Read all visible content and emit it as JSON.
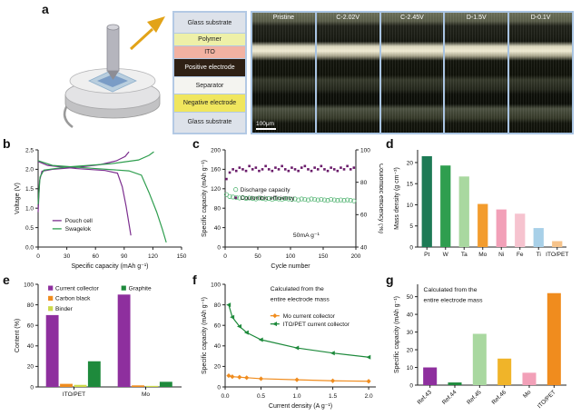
{
  "panels": {
    "a": "a",
    "b": "b",
    "c": "c",
    "d": "d",
    "e": "e",
    "f": "f",
    "g": "g"
  },
  "panel_a": {
    "stack_layers": [
      {
        "label": "Glass substrate",
        "bg": "#dde2ea",
        "fg": "#222"
      },
      {
        "label": "Polymer",
        "bg": "#eef0a8",
        "fg": "#222"
      },
      {
        "label": "ITO",
        "bg": "#f2b2a2",
        "fg": "#222"
      },
      {
        "label": "Positive electrode",
        "bg": "#2e2014",
        "fg": "#ffffff"
      },
      {
        "label": "Separator",
        "bg": "#f4f4f0",
        "fg": "#222"
      },
      {
        "label": "Negative electrode",
        "bg": "#f0e65e",
        "fg": "#222"
      },
      {
        "label": "Glass substrate",
        "bg": "#dde2ea",
        "fg": "#222"
      }
    ],
    "micrographs": [
      "Pristine",
      "C-2.02V",
      "C-2.45V",
      "D-1.5V",
      "D-0.1V"
    ],
    "scale_bar": "100μm"
  },
  "chart_data": [
    {
      "id": "b",
      "type": "line",
      "x": {
        "min": 0,
        "max": 150,
        "ticks": [
          0,
          30,
          60,
          90,
          120,
          150
        ],
        "dec": 0,
        "label": "Specific capacity (mAh g⁻¹)"
      },
      "y": {
        "min": 0,
        "max": 2.5,
        "ticks": [
          0,
          0.5,
          1,
          1.5,
          2,
          2.5
        ],
        "dec": 1,
        "label": "Voltage (V)"
      },
      "series": [
        {
          "name": "Pouch cell",
          "color": "#7b2d8e",
          "segments": [
            [
              [
                0,
                0.9
              ],
              [
                1.5,
                1.7
              ],
              [
                4,
                1.95
              ],
              [
                15,
                2.0
              ],
              [
                40,
                2.05
              ],
              [
                65,
                2.12
              ],
              [
                82,
                2.22
              ],
              [
                91,
                2.33
              ],
              [
                95,
                2.45
              ]
            ],
            [
              [
                0,
                2.2
              ],
              [
                10,
                2.1
              ],
              [
                40,
                2.02
              ],
              [
                70,
                1.97
              ],
              [
                83,
                1.9
              ],
              [
                88,
                1.55
              ],
              [
                92,
                1.05
              ],
              [
                95,
                0.6
              ],
              [
                97,
                0.3
              ]
            ]
          ]
        },
        {
          "name": "Swagelok",
          "color": "#2f9e4f",
          "segments": [
            [
              [
                0,
                1.1
              ],
              [
                2,
                1.8
              ],
              [
                6,
                1.98
              ],
              [
                30,
                2.06
              ],
              [
                75,
                2.14
              ],
              [
                105,
                2.24
              ],
              [
                116,
                2.36
              ],
              [
                121,
                2.45
              ]
            ],
            [
              [
                0,
                2.22
              ],
              [
                15,
                2.1
              ],
              [
                60,
                2.02
              ],
              [
                95,
                1.96
              ],
              [
                108,
                1.85
              ],
              [
                116,
                1.4
              ],
              [
                124,
                0.9
              ],
              [
                130,
                0.45
              ],
              [
                134,
                0.12
              ]
            ]
          ]
        }
      ],
      "legend": {
        "pos": [
          0.1,
          0.7
        ],
        "items": [
          {
            "label": "Pouch cell",
            "color": "#7b2d8e",
            "marker": "line"
          },
          {
            "label": "Swagelok",
            "color": "#2f9e4f",
            "marker": "line"
          }
        ]
      }
    },
    {
      "id": "c",
      "type": "scatter",
      "x": {
        "min": 0,
        "max": 200,
        "ticks": [
          0,
          50,
          100,
          150,
          200
        ],
        "dec": 0,
        "label": "Cycle number"
      },
      "y": {
        "min": 0,
        "max": 200,
        "ticks": [
          0,
          40,
          80,
          120,
          160,
          200
        ],
        "dec": 0,
        "label": "Specific capacity (mAh g⁻¹)"
      },
      "y2": {
        "min": 40,
        "max": 100,
        "ticks": [
          40,
          60,
          80,
          100
        ],
        "dec": 0,
        "label": "Coulombic efficiency (%)"
      },
      "series": [
        {
          "name": "Discharge capacity",
          "color": "#5cb87a",
          "marker": "circle-open",
          "points": [
            [
              2,
              108
            ],
            [
              7,
              104
            ],
            [
              12,
              103
            ],
            [
              17,
              102
            ],
            [
              22,
              101
            ],
            [
              27,
              102
            ],
            [
              32,
              100
            ],
            [
              37,
              101
            ],
            [
              42,
              100
            ],
            [
              47,
              99
            ],
            [
              52,
              101
            ],
            [
              57,
              100
            ],
            [
              62,
              99
            ],
            [
              67,
              100
            ],
            [
              72,
              98
            ],
            [
              77,
              100
            ],
            [
              82,
              99
            ],
            [
              87,
              98
            ],
            [
              92,
              100
            ],
            [
              97,
              99
            ],
            [
              102,
              98
            ],
            [
              107,
              99
            ],
            [
              112,
              97
            ],
            [
              117,
              99
            ],
            [
              122,
              98
            ],
            [
              127,
              97
            ],
            [
              132,
              99
            ],
            [
              137,
              98
            ],
            [
              142,
              97
            ],
            [
              147,
              98
            ],
            [
              152,
              97
            ],
            [
              157,
              96
            ],
            [
              162,
              98
            ],
            [
              167,
              97
            ],
            [
              172,
              96
            ],
            [
              177,
              97
            ],
            [
              182,
              96
            ],
            [
              187,
              97
            ],
            [
              192,
              96
            ],
            [
              197,
              95
            ]
          ]
        },
        {
          "name": "Coulombic efficiency",
          "color": "#6a1b6a",
          "marker": "dot",
          "axis": "y2",
          "points": [
            [
              2,
              82
            ],
            [
              7,
              86
            ],
            [
              12,
              88
            ],
            [
              17,
              87
            ],
            [
              22,
              89
            ],
            [
              27,
              88
            ],
            [
              32,
              87
            ],
            [
              37,
              90
            ],
            [
              42,
              88
            ],
            [
              47,
              89
            ],
            [
              52,
              87
            ],
            [
              57,
              88
            ],
            [
              62,
              90
            ],
            [
              67,
              88
            ],
            [
              72,
              87
            ],
            [
              77,
              89
            ],
            [
              82,
              88
            ],
            [
              87,
              90
            ],
            [
              92,
              88
            ],
            [
              97,
              87
            ],
            [
              102,
              89
            ],
            [
              107,
              88
            ],
            [
              112,
              87
            ],
            [
              117,
              89
            ],
            [
              122,
              90
            ],
            [
              127,
              88
            ],
            [
              132,
              87
            ],
            [
              137,
              89
            ],
            [
              142,
              88
            ],
            [
              147,
              90
            ],
            [
              152,
              88
            ],
            [
              157,
              87
            ],
            [
              162,
              89
            ],
            [
              167,
              88
            ],
            [
              172,
              87
            ],
            [
              177,
              89
            ],
            [
              182,
              88
            ],
            [
              187,
              90
            ],
            [
              192,
              88
            ],
            [
              197,
              89
            ]
          ]
        }
      ],
      "legend": {
        "pos": [
          0.06,
          0.38
        ],
        "items": [
          {
            "label": "Discharge capacity",
            "color": "#5cb87a",
            "marker": "circle-open"
          },
          {
            "label": "Coulombic efficiency",
            "color": "#6a1b6a",
            "marker": "dot"
          }
        ]
      },
      "annotations": [
        {
          "text": "50mA g⁻¹",
          "pos": [
            0.52,
            0.84
          ]
        }
      ]
    },
    {
      "id": "d",
      "type": "bar",
      "categories": [
        "Pt",
        "W",
        "Ta",
        "Mo",
        "Ni",
        "Fe",
        "Ti",
        "ITO/PET"
      ],
      "values": [
        21.5,
        19.3,
        16.7,
        10.2,
        8.9,
        7.9,
        4.5,
        1.4
      ],
      "colors": [
        "#1d7a55",
        "#2f9e4f",
        "#a9d8a0",
        "#f39c2d",
        "#f2a0b8",
        "#f6c3cf",
        "#a8d0e8",
        "#f6c38a"
      ],
      "y": {
        "min": 0,
        "max": 23,
        "ticks": [
          0,
          5,
          10,
          15,
          20
        ],
        "dec": 0,
        "label": "Mass density (g cm⁻³)"
      }
    },
    {
      "id": "e",
      "type": "groupbar",
      "categories": [
        "ITO/PET",
        "Mo"
      ],
      "series": [
        {
          "name": "Current collector",
          "color": "#8e2f9e",
          "values": [
            70,
            90
          ]
        },
        {
          "name": "Carbon black",
          "color": "#f08c1e",
          "values": [
            3,
            1.5
          ]
        },
        {
          "name": "Binder",
          "color": "#cdd94a",
          "values": [
            2,
            1
          ]
        },
        {
          "name": "Graphite",
          "color": "#1e8a3c",
          "values": [
            25,
            5
          ]
        }
      ],
      "y": {
        "min": 0,
        "max": 100,
        "ticks": [
          0,
          20,
          40,
          60,
          80,
          100
        ],
        "dec": 0,
        "label": "Content (%)"
      },
      "legend": {
        "items": [
          {
            "label": "Current collector",
            "color": "#8e2f9e",
            "marker": "square",
            "pos": [
              0.07,
              0.01
            ]
          },
          {
            "label": "Carbon black",
            "color": "#f08c1e",
            "marker": "square",
            "pos": [
              0.07,
              0.11
            ]
          },
          {
            "label": "Binder",
            "color": "#cdd94a",
            "marker": "square",
            "pos": [
              0.07,
              0.21
            ]
          },
          {
            "label": "Graphite",
            "color": "#1e8a3c",
            "marker": "square",
            "pos": [
              0.58,
              0.01
            ]
          }
        ]
      }
    },
    {
      "id": "f",
      "type": "line",
      "x": {
        "min": 0,
        "max": 2.1,
        "ticks": [
          0,
          0.5,
          1,
          1.5,
          2
        ],
        "dec": 1,
        "label": "Current density (A g⁻¹)"
      },
      "y": {
        "min": 0,
        "max": 100,
        "ticks": [
          0,
          20,
          40,
          60,
          80,
          100
        ],
        "dec": 0,
        "label": "Specific capacity (mAh g⁻¹)"
      },
      "series": [
        {
          "name": "Mo current collector",
          "color": "#f08c1e",
          "marker": "diamond",
          "segments": [
            [
              [
                0.05,
                11
              ],
              [
                0.1,
                10
              ],
              [
                0.2,
                9.5
              ],
              [
                0.3,
                9
              ],
              [
                0.5,
                8
              ],
              [
                1.0,
                7
              ],
              [
                1.5,
                6
              ],
              [
                2.0,
                5.5
              ]
            ]
          ]
        },
        {
          "name": "ITO/PET current collector",
          "color": "#1e8a3c",
          "marker": "tri",
          "segments": [
            [
              [
                0.05,
                80
              ],
              [
                0.1,
                68
              ],
              [
                0.2,
                59
              ],
              [
                0.3,
                53
              ],
              [
                0.5,
                46
              ],
              [
                1.0,
                38
              ],
              [
                1.5,
                33
              ],
              [
                2.0,
                29
              ]
            ]
          ]
        }
      ],
      "legend": {
        "pos": [
          0.3,
          0.28
        ],
        "items": [
          {
            "label": "Mo current collector",
            "color": "#f08c1e",
            "marker": "diamond-line"
          },
          {
            "label": "ITO/PET current collector",
            "color": "#1e8a3c",
            "marker": "tri-line"
          }
        ]
      },
      "annotations": [
        {
          "text": "Calculated from the",
          "pos": [
            0.3,
            0.01
          ]
        },
        {
          "text": "entire electrode mass",
          "pos": [
            0.3,
            0.11
          ]
        }
      ]
    },
    {
      "id": "g",
      "type": "bar",
      "categories": [
        "Ref.43",
        "Ref.44",
        "Ref.45",
        "Ref.46",
        "Mo",
        "ITO/PET"
      ],
      "values": [
        10,
        1.5,
        29,
        15,
        7,
        52
      ],
      "colors": [
        "#8e2f9e",
        "#1e8a3c",
        "#a9d8a0",
        "#f0b429",
        "#f2a0b8",
        "#f08c1e"
      ],
      "y": {
        "min": 0,
        "max": 57,
        "ticks": [
          0,
          10,
          20,
          30,
          40,
          50
        ],
        "dec": 0,
        "label": "Specific capacity (mAh g⁻¹)"
      },
      "x": {
        "rot": true
      },
      "annotations": [
        {
          "text": "Calculated from the",
          "pos": [
            0.04,
            0.02
          ]
        },
        {
          "text": "entire electrode mass",
          "pos": [
            0.04,
            0.12
          ]
        }
      ]
    }
  ]
}
